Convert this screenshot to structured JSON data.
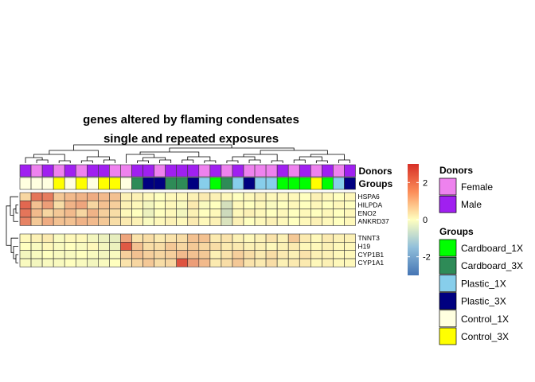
{
  "chart_data": {
    "type": "heatmap",
    "title": [
      "genes altered by flaming condensates",
      "single and repeated exposures"
    ],
    "annotation_labels": [
      "Donors",
      "Groups"
    ],
    "rows": [
      "HSPA6",
      "HILPDA",
      "ENO2",
      "ANKRD37",
      "TNNT3",
      "H19",
      "CYP1B1",
      "CYP1A1"
    ],
    "row_clusters": [
      4,
      4
    ],
    "column_count": 30,
    "donors": [
      "Male",
      "Female",
      "Male",
      "Female",
      "Male",
      "Female",
      "Male",
      "Male",
      "Female",
      "Female",
      "Male",
      "Male",
      "Female",
      "Male",
      "Male",
      "Male",
      "Female",
      "Male",
      "Female",
      "Male",
      "Female",
      "Female",
      "Female",
      "Male",
      "Female",
      "Male",
      "Female",
      "Male",
      "Female",
      "Male"
    ],
    "groups": [
      "Control_1X",
      "Control_1X",
      "Control_1X",
      "Control_3X",
      "Control_1X",
      "Control_3X",
      "Control_1X",
      "Control_3X",
      "Control_3X",
      "Control_1X",
      "Cardboard_3X",
      "Plastic_3X",
      "Plastic_3X",
      "Cardboard_3X",
      "Cardboard_3X",
      "Plastic_3X",
      "Plastic_1X",
      "Cardboard_1X",
      "Cardboard_3X",
      "Plastic_1X",
      "Plastic_3X",
      "Plastic_1X",
      "Plastic_1X",
      "Cardboard_1X",
      "Cardboard_1X",
      "Cardboard_1X",
      "Control_3X",
      "Cardboard_1X",
      "Plastic_1X",
      "Plastic_3X"
    ],
    "values": [
      [
        0.6,
        2.0,
        1.9,
        0.8,
        1.0,
        1.1,
        1.2,
        1.0,
        0.9,
        0.2,
        0.2,
        0.1,
        0.0,
        0.1,
        0.1,
        0.2,
        0.3,
        0.2,
        0.1,
        0.0,
        0.1,
        0.2,
        0.1,
        0.1,
        0.1,
        0.0,
        0.2,
        0.1,
        0.0,
        0.1
      ],
      [
        2.2,
        0.9,
        1.4,
        0.5,
        1.1,
        1.3,
        0.6,
        0.9,
        0.7,
        0.2,
        0.1,
        -0.2,
        0.0,
        0.1,
        -0.1,
        0.3,
        -0.1,
        0.0,
        -0.7,
        0.1,
        0.0,
        0.1,
        -0.1,
        0.0,
        0.1,
        0.0,
        0.1,
        0.0,
        0.1,
        0.0
      ],
      [
        2.0,
        1.0,
        0.6,
        0.8,
        1.0,
        0.6,
        1.1,
        0.7,
        0.5,
        0.1,
        0.0,
        -0.3,
        0.0,
        0.1,
        -0.2,
        0.2,
        0.0,
        0.1,
        -0.8,
        0.1,
        0.2,
        0.1,
        0.0,
        0.1,
        0.0,
        0.1,
        0.0,
        0.1,
        0.0,
        0.1
      ],
      [
        1.8,
        0.8,
        1.2,
        0.9,
        0.9,
        1.1,
        1.0,
        0.8,
        0.5,
        0.3,
        0.2,
        -0.1,
        0.1,
        0.2,
        0.1,
        0.3,
        0.1,
        0.2,
        -0.6,
        0.2,
        0.0,
        0.1,
        0.2,
        0.1,
        0.0,
        0.1,
        0.2,
        0.1,
        0.0,
        0.1
      ],
      [
        0.1,
        0.2,
        0.3,
        -0.1,
        0.1,
        0.1,
        -0.2,
        -0.3,
        -0.4,
        1.3,
        0.4,
        0.5,
        0.3,
        0.4,
        0.5,
        0.9,
        0.9,
        0.3,
        0.4,
        0.2,
        0.1,
        0.2,
        0.4,
        0.2,
        0.8,
        0.3,
        0.1,
        0.3,
        0.2,
        0.2
      ],
      [
        0.0,
        -0.1,
        0.1,
        -0.1,
        0.0,
        -0.1,
        0.1,
        -0.2,
        -0.3,
        2.4,
        0.9,
        0.5,
        0.5,
        0.8,
        0.6,
        0.8,
        0.6,
        0.5,
        0.3,
        0.3,
        0.2,
        0.2,
        0.1,
        0.2,
        0.3,
        0.1,
        0.1,
        0.2,
        0.1,
        0.1
      ],
      [
        -0.2,
        -0.1,
        0.0,
        -0.1,
        -0.1,
        0.0,
        -0.1,
        -0.2,
        -0.1,
        0.7,
        0.9,
        0.7,
        0.6,
        0.7,
        1.0,
        0.9,
        0.8,
        0.2,
        0.4,
        0.7,
        0.5,
        0.3,
        0.5,
        0.3,
        0.2,
        0.4,
        0.2,
        0.2,
        0.1,
        0.1
      ],
      [
        -0.1,
        -0.2,
        -0.1,
        -0.1,
        0.0,
        -0.1,
        -0.2,
        -0.1,
        0.0,
        0.4,
        0.6,
        0.8,
        0.5,
        0.6,
        2.5,
        1.4,
        1.0,
        0.3,
        0.5,
        0.8,
        0.4,
        0.3,
        0.5,
        0.2,
        0.3,
        0.3,
        0.1,
        0.2,
        0.1,
        0.1
      ]
    ],
    "color_scale": {
      "min": -3,
      "max": 3,
      "colors": [
        "#4575b4",
        "#ffffbf",
        "#d73027"
      ]
    },
    "colorbar_ticks": [
      2,
      0,
      -2
    ],
    "donor_colors": {
      "Female": "#ee82ee",
      "Male": "#a020f0"
    },
    "group_colors": {
      "Cardboard_1X": "#00ff00",
      "Cardboard_3X": "#2e8b57",
      "Plastic_1X": "#87ceeb",
      "Plastic_3X": "#000080",
      "Control_1X": "#ffffe0",
      "Control_3X": "#ffff00"
    },
    "legend": [
      {
        "title": "Donors",
        "entries": [
          "Female",
          "Male"
        ]
      },
      {
        "title": "Groups",
        "entries": [
          "Cardboard_1X",
          "Cardboard_3X",
          "Plastic_1X",
          "Plastic_3X",
          "Control_1X",
          "Control_3X"
        ]
      }
    ],
    "grid": true,
    "legend_position": "right"
  }
}
